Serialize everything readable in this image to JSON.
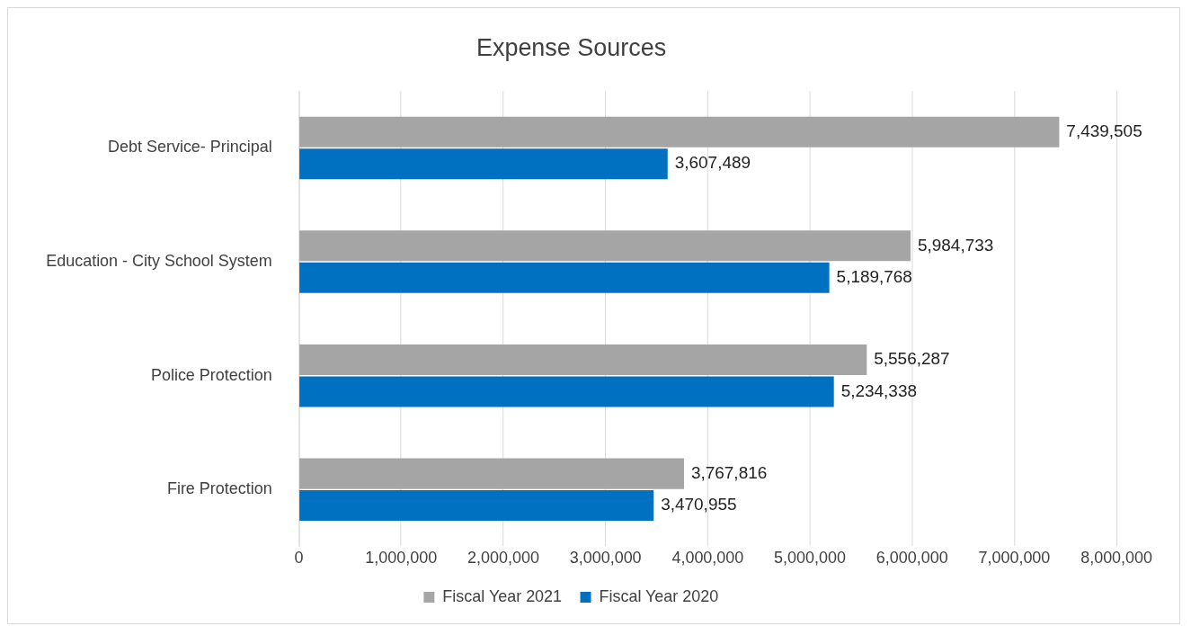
{
  "chart_data": {
    "type": "bar",
    "orientation": "horizontal",
    "title": "Expense Sources",
    "categories": [
      "Debt Service- Principal",
      "Education - City School System",
      "Police Protection",
      "Fire Protection"
    ],
    "series": [
      {
        "name": "Fiscal Year 2021",
        "color": "#a5a5a5",
        "values": [
          7439505,
          5984733,
          5556287,
          3767816
        ],
        "value_labels": [
          "7,439,505",
          "5,984,733",
          "5,556,287",
          "3,767,816"
        ]
      },
      {
        "name": "Fiscal Year 2020",
        "color": "#0070c0",
        "values": [
          3607489,
          5189768,
          5234338,
          3470955
        ],
        "value_labels": [
          "3,607,489",
          "5,189,768",
          "5,234,338",
          "3,470,955"
        ]
      }
    ],
    "xlim": [
      0,
      8000000
    ],
    "xticks": [
      0,
      {
        "value": 1000000,
        "label": "1,000,000"
      },
      {
        "value": 2000000,
        "label": "2,000,000"
      },
      {
        "value": 3000000,
        "label": "3,000,000"
      },
      {
        "value": 4000000,
        "label": "4,000,000"
      },
      {
        "value": 5000000,
        "label": "5,000,000"
      },
      {
        "value": 6000000,
        "label": "6,000,000"
      },
      {
        "value": 7000000,
        "label": "7,000,000"
      },
      {
        "value": 8000000,
        "label": "8,000,000"
      }
    ],
    "grid": "x",
    "legend": "bottom"
  }
}
